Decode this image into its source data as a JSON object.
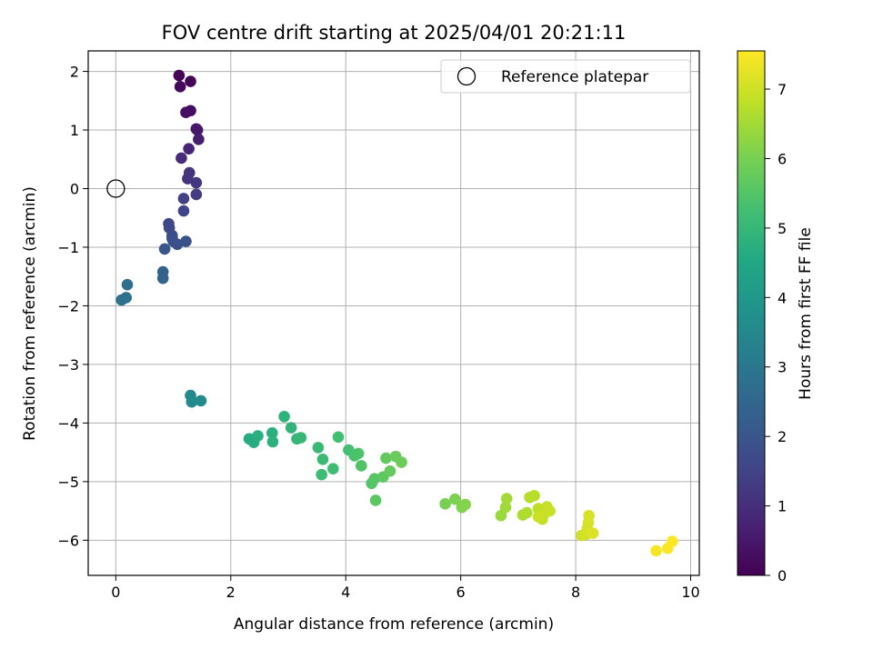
{
  "chart_data": {
    "type": "scatter",
    "title": "FOV centre drift starting at 2025/04/01 20:21:11",
    "xlabel": "Angular distance from reference (arcmin)",
    "ylabel": "Rotation from reference (arcmin)",
    "xlim": [
      -0.48,
      10.15
    ],
    "ylim": [
      -6.6,
      2.35
    ],
    "xticks": [
      0,
      2,
      4,
      6,
      8,
      10
    ],
    "yticks": [
      2,
      1,
      0,
      -1,
      -2,
      -3,
      -4,
      -5,
      -6
    ],
    "grid": true,
    "legend": {
      "placement": "top-right",
      "entries": [
        {
          "label": "Reference platepar",
          "marker": "open-circle",
          "color": "#000000"
        }
      ]
    },
    "reference_point": {
      "x": 0,
      "y": 0
    },
    "colorbar": {
      "label": "Hours from first FF file",
      "range": [
        0,
        7.55
      ],
      "ticks": [
        0,
        1,
        2,
        3,
        4,
        5,
        6,
        7
      ],
      "colormap": "viridis"
    },
    "points": [
      {
        "x": 1.1,
        "y": 1.93,
        "c": 0.05
      },
      {
        "x": 1.3,
        "y": 1.83,
        "c": 0.1
      },
      {
        "x": 1.12,
        "y": 1.74,
        "c": 0.15
      },
      {
        "x": 1.3,
        "y": 1.33,
        "c": 0.25
      },
      {
        "x": 1.22,
        "y": 1.3,
        "c": 0.3
      },
      {
        "x": 1.4,
        "y": 1.02,
        "c": 0.45
      },
      {
        "x": 1.42,
        "y": 1.0,
        "c": 0.5
      },
      {
        "x": 1.44,
        "y": 0.84,
        "c": 0.6
      },
      {
        "x": 1.27,
        "y": 0.68,
        "c": 0.75
      },
      {
        "x": 1.14,
        "y": 0.52,
        "c": 0.95
      },
      {
        "x": 1.28,
        "y": 0.27,
        "c": 1.1
      },
      {
        "x": 1.25,
        "y": 0.17,
        "c": 1.15
      },
      {
        "x": 1.4,
        "y": 0.1,
        "c": 1.2
      },
      {
        "x": 1.4,
        "y": -0.1,
        "c": 1.35
      },
      {
        "x": 1.18,
        "y": -0.17,
        "c": 1.45
      },
      {
        "x": 1.18,
        "y": -0.38,
        "c": 1.55
      },
      {
        "x": 0.92,
        "y": -0.6,
        "c": 1.6
      },
      {
        "x": 0.93,
        "y": -0.67,
        "c": 1.65
      },
      {
        "x": 0.98,
        "y": -0.8,
        "c": 1.7
      },
      {
        "x": 0.98,
        "y": -0.85,
        "c": 1.75
      },
      {
        "x": 1.0,
        "y": -0.9,
        "c": 1.8
      },
      {
        "x": 1.07,
        "y": -0.95,
        "c": 1.85
      },
      {
        "x": 1.22,
        "y": -0.9,
        "c": 1.9
      },
      {
        "x": 0.85,
        "y": -1.03,
        "c": 2.0
      },
      {
        "x": 0.82,
        "y": -1.42,
        "c": 2.35
      },
      {
        "x": 0.82,
        "y": -1.53,
        "c": 2.4
      },
      {
        "x": 0.2,
        "y": -1.64,
        "c": 2.75
      },
      {
        "x": 0.18,
        "y": -1.86,
        "c": 2.8
      },
      {
        "x": 0.1,
        "y": -1.9,
        "c": 2.85
      },
      {
        "x": 1.3,
        "y": -3.53,
        "c": 3.5
      },
      {
        "x": 1.32,
        "y": -3.64,
        "c": 3.55
      },
      {
        "x": 1.48,
        "y": -3.62,
        "c": 3.6
      },
      {
        "x": 2.32,
        "y": -4.27,
        "c": 4.6
      },
      {
        "x": 2.4,
        "y": -4.33,
        "c": 4.65
      },
      {
        "x": 2.47,
        "y": -4.22,
        "c": 4.7
      },
      {
        "x": 2.72,
        "y": -4.17,
        "c": 4.75
      },
      {
        "x": 2.73,
        "y": -4.32,
        "c": 4.8
      },
      {
        "x": 2.93,
        "y": -3.89,
        "c": 4.85
      },
      {
        "x": 3.05,
        "y": -4.08,
        "c": 4.9
      },
      {
        "x": 3.15,
        "y": -4.27,
        "c": 4.95
      },
      {
        "x": 3.22,
        "y": -4.25,
        "c": 5.0
      },
      {
        "x": 3.52,
        "y": -4.42,
        "c": 5.05
      },
      {
        "x": 3.6,
        "y": -4.62,
        "c": 5.1
      },
      {
        "x": 3.58,
        "y": -4.88,
        "c": 5.15
      },
      {
        "x": 3.78,
        "y": -4.78,
        "c": 5.2
      },
      {
        "x": 3.87,
        "y": -4.24,
        "c": 5.25
      },
      {
        "x": 4.05,
        "y": -4.46,
        "c": 5.3
      },
      {
        "x": 4.15,
        "y": -4.56,
        "c": 5.35
      },
      {
        "x": 4.22,
        "y": -4.52,
        "c": 5.4
      },
      {
        "x": 4.27,
        "y": -4.73,
        "c": 5.45
      },
      {
        "x": 4.45,
        "y": -5.03,
        "c": 5.5
      },
      {
        "x": 4.5,
        "y": -4.95,
        "c": 5.55
      },
      {
        "x": 4.52,
        "y": -5.32,
        "c": 5.6
      },
      {
        "x": 4.65,
        "y": -4.92,
        "c": 5.65
      },
      {
        "x": 4.7,
        "y": -4.6,
        "c": 5.7
      },
      {
        "x": 4.77,
        "y": -4.82,
        "c": 5.75
      },
      {
        "x": 4.87,
        "y": -4.57,
        "c": 5.8
      },
      {
        "x": 4.97,
        "y": -4.67,
        "c": 5.85
      },
      {
        "x": 5.73,
        "y": -5.38,
        "c": 6.0
      },
      {
        "x": 5.9,
        "y": -5.3,
        "c": 6.05
      },
      {
        "x": 6.02,
        "y": -5.44,
        "c": 6.1
      },
      {
        "x": 6.08,
        "y": -5.39,
        "c": 6.15
      },
      {
        "x": 6.7,
        "y": -5.58,
        "c": 6.4
      },
      {
        "x": 6.78,
        "y": -5.44,
        "c": 6.45
      },
      {
        "x": 6.8,
        "y": -5.29,
        "c": 6.5
      },
      {
        "x": 7.08,
        "y": -5.57,
        "c": 6.6
      },
      {
        "x": 7.15,
        "y": -5.53,
        "c": 6.65
      },
      {
        "x": 7.2,
        "y": -5.27,
        "c": 6.7
      },
      {
        "x": 7.28,
        "y": -5.24,
        "c": 6.75
      },
      {
        "x": 7.35,
        "y": -5.46,
        "c": 6.8
      },
      {
        "x": 7.4,
        "y": -5.58,
        "c": 6.82
      },
      {
        "x": 7.42,
        "y": -5.64,
        "c": 6.85
      },
      {
        "x": 7.45,
        "y": -5.55,
        "c": 6.88
      },
      {
        "x": 7.5,
        "y": -5.43,
        "c": 6.9
      },
      {
        "x": 7.55,
        "y": -5.5,
        "c": 6.92
      },
      {
        "x": 7.35,
        "y": -5.6,
        "c": 6.95
      },
      {
        "x": 8.1,
        "y": -5.92,
        "c": 7.0
      },
      {
        "x": 8.18,
        "y": -5.9,
        "c": 7.05
      },
      {
        "x": 8.2,
        "y": -5.8,
        "c": 7.08
      },
      {
        "x": 8.22,
        "y": -5.7,
        "c": 7.1
      },
      {
        "x": 8.23,
        "y": -5.58,
        "c": 7.12
      },
      {
        "x": 8.3,
        "y": -5.88,
        "c": 7.15
      },
      {
        "x": 9.4,
        "y": -6.18,
        "c": 7.45
      },
      {
        "x": 9.6,
        "y": -6.14,
        "c": 7.5
      },
      {
        "x": 9.68,
        "y": -6.02,
        "c": 7.55
      }
    ]
  }
}
